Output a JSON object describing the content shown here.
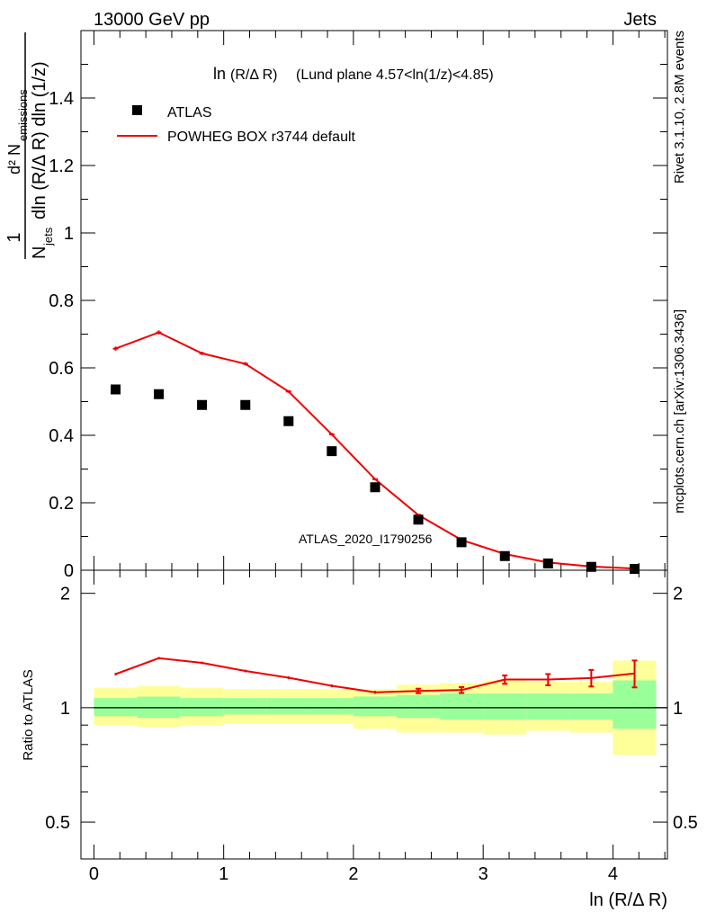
{
  "header": {
    "left": "13000 GeV pp",
    "right": "Jets"
  },
  "side_labels": {
    "rivet": "Rivet 3.1.10,  2.8M events",
    "mcplots": "mcplots.cern.ch [arXiv:1306.3436]"
  },
  "chart_data": [
    {
      "type": "scatter",
      "title_main": "ln",
      "title_paren": "(R/Δ R)",
      "title_rest": "(Lund plane 4.57<ln(1/z)<4.85)",
      "analysis_id": "ATLAS_2020_I1790256",
      "ylabel_parts": [
        "1",
        "N",
        "jets",
        "dln (R/Δ R) dln (1/z)",
        "d² N",
        "emissions"
      ],
      "xlim": [
        -0.1,
        4.42
      ],
      "ylim": [
        0,
        1.6
      ],
      "yticks": [
        "0",
        "0.2",
        "0.4",
        "0.6",
        "0.8",
        "1",
        "1.2",
        "1.4"
      ],
      "legend": [
        {
          "name": "ATLAS",
          "color": "#000000",
          "marker": "square"
        },
        {
          "name": "POWHEG BOX r3744 default",
          "color": "#ee0000",
          "marker": "line"
        }
      ],
      "series": [
        {
          "name": "ATLAS",
          "x": [
            0.167,
            0.5,
            0.833,
            1.167,
            1.5,
            1.833,
            2.167,
            2.5,
            2.833,
            3.167,
            3.5,
            3.833,
            4.167
          ],
          "y": [
            0.536,
            0.522,
            0.49,
            0.49,
            0.442,
            0.353,
            0.246,
            0.15,
            0.083,
            0.042,
            0.02,
            0.01,
            0.004
          ]
        },
        {
          "name": "POWHEG BOX r3744 default",
          "x": [
            0.167,
            0.5,
            0.833,
            1.167,
            1.5,
            1.833,
            2.167,
            2.5,
            2.833,
            3.167,
            3.5,
            3.833,
            4.167
          ],
          "y": [
            0.657,
            0.705,
            0.643,
            0.612,
            0.53,
            0.403,
            0.27,
            0.164,
            0.09,
            0.048,
            0.023,
            0.011,
            0.005
          ],
          "err": [
            0.006,
            0.006,
            0.005,
            0.005,
            0.004,
            0.004,
            0.003,
            0.003,
            0.002,
            0.002,
            0.001,
            0.001,
            0.001
          ]
        }
      ]
    },
    {
      "type": "line",
      "ylabel": "Ratio to ATLAS",
      "xlabel": "ln (R/Δ R)",
      "xlim": [
        -0.1,
        4.42
      ],
      "ylim": [
        0.4,
        2.3
      ],
      "log_y": true,
      "xticks": [
        "0",
        "1",
        "2",
        "3",
        "4"
      ],
      "yticks": [
        "0.5",
        "1",
        "2"
      ],
      "bin_edges": [
        0,
        0.333,
        0.667,
        1.0,
        1.333,
        1.667,
        2.0,
        2.333,
        2.667,
        3.0,
        3.333,
        3.667,
        4.0,
        4.333
      ],
      "bands": {
        "outer": {
          "color": "#ffff99",
          "lower": [
            0.9,
            0.89,
            0.9,
            0.91,
            0.91,
            0.91,
            0.88,
            0.86,
            0.86,
            0.85,
            0.87,
            0.86,
            0.75
          ],
          "upper": [
            1.13,
            1.14,
            1.13,
            1.12,
            1.12,
            1.12,
            1.12,
            1.15,
            1.16,
            1.18,
            1.17,
            1.17,
            1.33
          ]
        },
        "inner": {
          "color": "#99ff99",
          "lower": [
            0.95,
            0.94,
            0.95,
            0.96,
            0.96,
            0.96,
            0.95,
            0.94,
            0.93,
            0.93,
            0.93,
            0.93,
            0.88
          ],
          "upper": [
            1.06,
            1.07,
            1.06,
            1.06,
            1.06,
            1.06,
            1.07,
            1.08,
            1.09,
            1.09,
            1.09,
            1.09,
            1.18
          ]
        }
      },
      "series": [
        {
          "name": "POWHEG BOX r3744 default",
          "x": [
            0.167,
            0.5,
            0.833,
            1.167,
            1.5,
            1.833,
            2.167,
            2.5,
            2.833,
            3.167,
            3.5,
            3.833,
            4.167
          ],
          "y": [
            1.226,
            1.35,
            1.312,
            1.249,
            1.199,
            1.142,
            1.098,
            1.107,
            1.113,
            1.186,
            1.186,
            1.197,
            1.231
          ],
          "err": [
            0.01,
            0.01,
            0.01,
            0.01,
            0.01,
            0.01,
            0.01,
            0.015,
            0.02,
            0.03,
            0.04,
            0.06,
            0.1
          ]
        }
      ]
    }
  ],
  "colors": {
    "model": "#ee0000",
    "data": "#000000",
    "side_text": "#808080"
  }
}
